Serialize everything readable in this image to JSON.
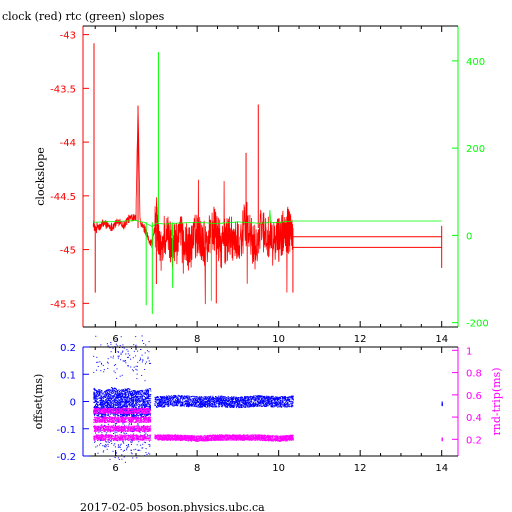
{
  "title": "clock (red) rtc (green) slopes",
  "footer": "2017-02-05  boson.physics.ubc.ca",
  "colors": {
    "clock": "#ff0000",
    "rtc": "#00ff00",
    "offset": "#0000ff",
    "roundtrip": "#ff00ff",
    "frame": "#000000"
  },
  "chart_data": [
    {
      "type": "line",
      "panel": "top",
      "xlim": [
        5.2,
        14.4
      ],
      "x_ticks": [
        6,
        8,
        10,
        12,
        14
      ],
      "left_axis": {
        "label": "clockslope",
        "color": "#ff0000",
        "ylim": [
          -45.72,
          -42.92
        ],
        "ticks": [
          -43,
          -43.5,
          -44,
          -44.5,
          -45,
          -45.5
        ],
        "tick_labels": [
          "-43",
          "-43.5",
          "-44",
          "-44.5",
          "-45",
          "-45.5"
        ]
      },
      "right_axis": {
        "label": "",
        "color": "#00ff00",
        "ylim": [
          -210,
          480
        ],
        "ticks": [
          400,
          200,
          0,
          -200
        ],
        "tick_labels": [
          "400",
          "200",
          "0",
          "-200"
        ]
      },
      "series": [
        {
          "axis": "left",
          "color": "#ff0000",
          "x": [
            5.45,
            5.5,
            5.55,
            5.6,
            5.7,
            5.8,
            5.9,
            6.0,
            6.1,
            6.2,
            6.3,
            6.4,
            6.5,
            6.55,
            6.6,
            6.7,
            6.8,
            6.9,
            7.0,
            7.1,
            7.2,
            7.4,
            7.6,
            7.8,
            8.0,
            8.2,
            8.4,
            8.6,
            8.8,
            9.0,
            9.2,
            9.4,
            9.6,
            9.8,
            10.0,
            10.2,
            10.35
          ],
          "y": [
            -44.75,
            -44.82,
            -44.78,
            -44.8,
            -44.75,
            -44.77,
            -44.79,
            -44.76,
            -44.73,
            -44.78,
            -44.72,
            -44.7,
            -44.68,
            -43.66,
            -44.75,
            -44.8,
            -44.9,
            -44.95,
            -44.7,
            -45.05,
            -44.85,
            -44.95,
            -44.9,
            -45.0,
            -44.85,
            -44.95,
            -44.8,
            -44.98,
            -44.85,
            -44.95,
            -44.75,
            -45.0,
            -44.8,
            -44.95,
            -44.9,
            -44.8,
            -44.9
          ]
        },
        {
          "axis": "left",
          "color": "#ff0000",
          "x": [
            10.35,
            14.0
          ],
          "y": [
            -44.88,
            -44.88
          ]
        },
        {
          "axis": "left",
          "color": "#ff0000",
          "x": [
            10.35,
            14.0
          ],
          "y": [
            -44.98,
            -44.98
          ]
        },
        {
          "axis": "right",
          "color": "#00ff00",
          "x": [
            5.45,
            6.0,
            6.5,
            6.7,
            6.9,
            7.0,
            7.2,
            7.5,
            8.0,
            8.5,
            9.0,
            9.5,
            10.0,
            10.35,
            14.0
          ],
          "y": [
            30,
            32,
            34,
            30,
            20,
            28,
            26,
            28,
            30,
            27,
            31,
            28,
            30,
            33,
            33
          ]
        }
      ]
    },
    {
      "type": "scatter",
      "panel": "bottom",
      "xlim": [
        5.2,
        14.4
      ],
      "x_ticks": [
        6,
        8,
        10,
        12,
        14
      ],
      "left_axis": {
        "label": "offset(ms)",
        "color": "#0000ff",
        "ylim": [
          -0.2,
          0.2
        ],
        "ticks": [
          0.2,
          0.1,
          0,
          -0.1,
          -0.2
        ],
        "tick_labels": [
          "0.2",
          "0.1",
          "0",
          "-0.1",
          "-0.2"
        ]
      },
      "right_axis": {
        "label": "rnd-trip(ms)",
        "color": "#ff00ff",
        "ylim": [
          0.05,
          1.03
        ],
        "ticks": [
          1,
          0.8,
          0.6,
          0.4,
          0.2
        ],
        "tick_labels": [
          "1",
          "0.8",
          "0.6",
          "0.4",
          "0.2"
        ]
      },
      "series": [
        {
          "axis": "left",
          "color": "#0000ff",
          "x": [
            5.5,
            5.7,
            5.9,
            6.1,
            6.3,
            6.5,
            6.8,
            7.0,
            7.5,
            8.0,
            8.5,
            9.0,
            9.5,
            10.0,
            10.35,
            14.0
          ],
          "y": [
            0.0,
            -0.01,
            0.005,
            -0.005,
            0.0,
            -0.01,
            0.0,
            0.0,
            0.005,
            0.0,
            0.002,
            -0.002,
            0.004,
            0.0,
            0.002,
            0.0
          ]
        },
        {
          "axis": "right",
          "color": "#ff00ff",
          "x": [
            5.5,
            5.7,
            5.9,
            6.1,
            6.3,
            6.5,
            6.8,
            7.0,
            7.5,
            8.0,
            8.5,
            9.0,
            9.5,
            10.0,
            10.35,
            14.0
          ],
          "y": [
            0.22,
            0.3,
            0.38,
            0.22,
            0.3,
            0.38,
            0.22,
            0.22,
            0.22,
            0.21,
            0.22,
            0.22,
            0.22,
            0.21,
            0.22,
            0.21
          ]
        }
      ]
    }
  ]
}
